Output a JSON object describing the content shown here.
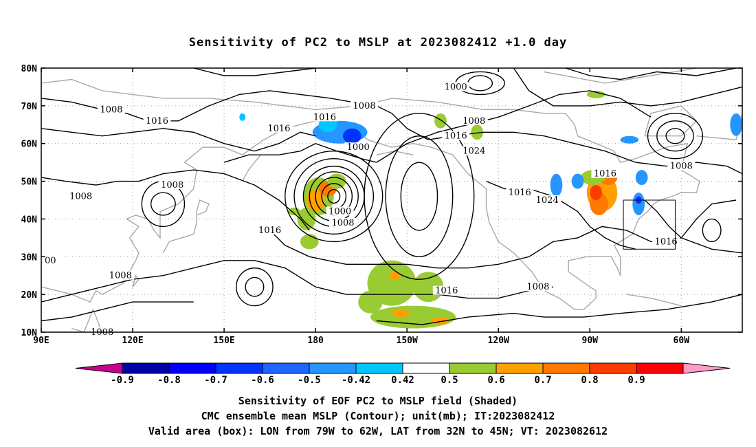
{
  "title": "Sensitivity of PC2 to MSLP at 2023082412 +1.0 day",
  "map": {
    "lat_labels": [
      "80N",
      "70N",
      "60N",
      "50N",
      "40N",
      "30N",
      "20N",
      "10N"
    ],
    "lon_labels": [
      "90E",
      "120E",
      "150E",
      "180",
      "150W",
      "120W",
      "90W",
      "60W"
    ],
    "lat_values": [
      80,
      70,
      60,
      50,
      40,
      30,
      20,
      10
    ],
    "lon_values": [
      90,
      120,
      150,
      180,
      210,
      240,
      270,
      300
    ],
    "extent": {
      "lon_min": 90,
      "lon_max": 320,
      "lat_min": 10,
      "lat_max": 80
    },
    "grid": "dotted",
    "contour_labels": [
      {
        "text": "1008",
        "lon": 113,
        "lat": 69
      },
      {
        "text": "1016",
        "lon": 128,
        "lat": 66
      },
      {
        "text": "1016",
        "lon": 168,
        "lat": 64
      },
      {
        "text": "1016",
        "lon": 183,
        "lat": 67
      },
      {
        "text": "1008",
        "lon": 196,
        "lat": 70
      },
      {
        "text": "1000",
        "lon": 194,
        "lat": 59
      },
      {
        "text": "1016",
        "lon": 226,
        "lat": 62
      },
      {
        "text": "1024",
        "lon": 232,
        "lat": 58
      },
      {
        "text": "1000",
        "lon": 226,
        "lat": 75
      },
      {
        "text": "1008",
        "lon": 232,
        "lat": 66
      },
      {
        "text": "1008",
        "lon": 133,
        "lat": 49
      },
      {
        "text": "1008",
        "lon": 103,
        "lat": 46
      },
      {
        "text": "1000",
        "lon": 188,
        "lat": 42
      },
      {
        "text": "1008",
        "lon": 189,
        "lat": 39
      },
      {
        "text": "1016",
        "lon": 165,
        "lat": 37
      },
      {
        "text": "1016",
        "lon": 247,
        "lat": 47
      },
      {
        "text": "1024",
        "lon": 256,
        "lat": 45
      },
      {
        "text": "1016",
        "lon": 275,
        "lat": 52
      },
      {
        "text": "1008",
        "lon": 300,
        "lat": 54
      },
      {
        "text": "1016",
        "lon": 295,
        "lat": 34
      },
      {
        "text": "1016",
        "lon": 223,
        "lat": 21
      },
      {
        "text": "1008",
        "lon": 253,
        "lat": 22
      },
      {
        "text": "1008",
        "lon": 116,
        "lat": 25
      },
      {
        "text": "1008",
        "lon": 110,
        "lat": 10
      },
      {
        "text": "00",
        "lon": 93,
        "lat": 29
      }
    ],
    "valid_box": {
      "lon_min": 281,
      "lon_max": 298,
      "lat_min": 32,
      "lat_max": 45
    }
  },
  "colorbar": {
    "labels": [
      "-0.9",
      "-0.8",
      "-0.7",
      "-0.6",
      "-0.5",
      "-0.42",
      "0.42",
      "0.5",
      "0.6",
      "0.7",
      "0.8",
      "0.9"
    ],
    "colors": [
      "#0000a8",
      "#0000ff",
      "#0033ff",
      "#1e66ff",
      "#2596ff",
      "#00c8ff",
      "#ffffff",
      "#99cc33",
      "#ffa000",
      "#ff7800",
      "#ff3c00",
      "#ff0000"
    ],
    "left_end_color": "#c8008c",
    "right_end_color": "#ff9cc8"
  },
  "caption": [
    "Sensitivity of EOF PC2 to MSLP field (Shaded)",
    "CMC ensemble mean MSLP (Contour); unit(mb); IT:2023082412",
    "Valid area (box): LON from 79W to 62W, LAT from 32N to 45N; VT: 2023082612"
  ],
  "shading_blobs": [
    {
      "lon": 181,
      "lat": 46,
      "rx": 5,
      "ry": 5,
      "color": "#99cc33"
    },
    {
      "lon": 180,
      "lat": 45,
      "rx": 3,
      "ry": 3,
      "color": "#ffa000"
    },
    {
      "lon": 184,
      "lat": 48,
      "rx": 3,
      "ry": 2,
      "color": "#ff7800"
    },
    {
      "lon": 177,
      "lat": 40,
      "rx": 3,
      "ry": 3,
      "color": "#99cc33"
    },
    {
      "lon": 178,
      "lat": 34,
      "rx": 3,
      "ry": 2,
      "color": "#99cc33"
    },
    {
      "lon": 187,
      "lat": 50,
      "rx": 3,
      "ry": 2,
      "color": "#99cc33"
    },
    {
      "lon": 188,
      "lat": 63,
      "rx": 9,
      "ry": 3,
      "color": "#2596ff"
    },
    {
      "lon": 192,
      "lat": 62,
      "rx": 3,
      "ry": 2,
      "color": "#0033ff"
    },
    {
      "lon": 184,
      "lat": 65,
      "rx": 3,
      "ry": 2,
      "color": "#00c8ff"
    },
    {
      "lon": 205,
      "lat": 23,
      "rx": 8,
      "ry": 6,
      "color": "#99cc33"
    },
    {
      "lon": 212,
      "lat": 14,
      "rx": 14,
      "ry": 3,
      "color": "#99cc33"
    },
    {
      "lon": 217,
      "lat": 22,
      "rx": 5,
      "ry": 4,
      "color": "#99cc33"
    },
    {
      "lon": 198,
      "lat": 18,
      "rx": 4,
      "ry": 3,
      "color": "#99cc33"
    },
    {
      "lon": 208,
      "lat": 15,
      "rx": 3,
      "ry": 1,
      "color": "#ffa000"
    },
    {
      "lon": 221,
      "lat": 13,
      "rx": 3,
      "ry": 1,
      "color": "#ffa000"
    },
    {
      "lon": 206,
      "lat": 25,
      "rx": 2,
      "ry": 1,
      "color": "#ffa000"
    },
    {
      "lon": 274,
      "lat": 47,
      "rx": 5,
      "ry": 5,
      "color": "#ffa000"
    },
    {
      "lon": 273,
      "lat": 44,
      "rx": 3,
      "ry": 3,
      "color": "#ff7800"
    },
    {
      "lon": 272,
      "lat": 47,
      "rx": 2,
      "ry": 2,
      "color": "#ff3c00"
    },
    {
      "lon": 276,
      "lat": 51,
      "rx": 3,
      "ry": 2,
      "color": "#ff7800"
    },
    {
      "lon": 271,
      "lat": 51,
      "rx": 4,
      "ry": 2,
      "color": "#99cc33"
    },
    {
      "lon": 266,
      "lat": 50,
      "rx": 2,
      "ry": 2,
      "color": "#2596ff"
    },
    {
      "lon": 259,
      "lat": 49,
      "rx": 2,
      "ry": 3,
      "color": "#2596ff"
    },
    {
      "lon": 286,
      "lat": 44,
      "rx": 2,
      "ry": 3,
      "color": "#2596ff"
    },
    {
      "lon": 286,
      "lat": 45,
      "rx": 1,
      "ry": 1,
      "color": "#0033ff"
    },
    {
      "lon": 287,
      "lat": 51,
      "rx": 2,
      "ry": 2,
      "color": "#2596ff"
    },
    {
      "lon": 283,
      "lat": 61,
      "rx": 3,
      "ry": 1,
      "color": "#2596ff"
    },
    {
      "lon": 318,
      "lat": 65,
      "rx": 2,
      "ry": 3,
      "color": "#2596ff"
    },
    {
      "lon": 221,
      "lat": 66,
      "rx": 2,
      "ry": 2,
      "color": "#99cc33"
    },
    {
      "lon": 233,
      "lat": 63,
      "rx": 2,
      "ry": 2,
      "color": "#99cc33"
    },
    {
      "lon": 272,
      "lat": 73,
      "rx": 3,
      "ry": 1,
      "color": "#99cc33"
    },
    {
      "lon": 156,
      "lat": 67,
      "rx": 1,
      "ry": 1,
      "color": "#00c8ff"
    },
    {
      "lon": 173,
      "lat": 42,
      "rx": 2,
      "ry": 1,
      "color": "#99cc33"
    }
  ]
}
